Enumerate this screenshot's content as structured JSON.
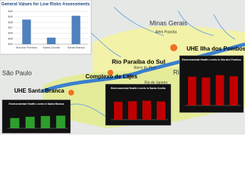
{
  "chart_data": [
    {
      "type": "bar",
      "title": "General Values for Low Risks Assessments",
      "categories": [
        "Ilha dos Pombos",
        "Santa Cecília",
        "Santa Branca"
      ],
      "values": [
        38.5,
        35.2,
        39.2
      ],
      "color": "#4f81bd",
      "ylim": [
        34,
        40
      ],
      "yticks": [
        {
          "value": 34,
          "label": "$34"
        },
        {
          "value": 35,
          "label": "$35"
        },
        {
          "value": 36,
          "label": "$36"
        },
        {
          "value": 37,
          "label": "$37"
        },
        {
          "value": 38,
          "label": "$38"
        },
        {
          "value": 39,
          "label": "$39"
        },
        {
          "value": 40,
          "label": "$40"
        }
      ],
      "grid": true
    },
    {
      "type": "bar",
      "title": "Environmental Health Levels in Ilha dos Pombos",
      "categories": [
        null,
        null,
        null,
        null
      ],
      "values": [
        72,
        70,
        76,
        73
      ],
      "color": "#c00000",
      "ylim": [
        0,
        100
      ]
    },
    {
      "type": "bar",
      "title": "Environmental Health Levels in Santa Cecília",
      "categories": [
        null,
        null,
        null,
        null
      ],
      "values": [
        70,
        72,
        74,
        71
      ],
      "color": "#c00000",
      "ylim": [
        0,
        100
      ]
    },
    {
      "type": "bar",
      "title": "Environmental Health Levels in Santa Branca",
      "categories": [
        null,
        null,
        null,
        null
      ],
      "values": [
        55,
        62,
        66,
        68
      ],
      "color": "#2e9e2e",
      "ylim": [
        0,
        100
      ]
    }
  ],
  "map": {
    "labels": [
      "Minas Gerais",
      "Além Paraíba",
      "Rio Paraíba do Sul",
      "Barra do Piraí",
      "Piraí",
      "Rio de Janeiro",
      "São Paulo",
      "Rio",
      "UHE Ilha dos Pombos",
      "UHE Santa Branca",
      "Complexo de Lajes"
    ]
  }
}
